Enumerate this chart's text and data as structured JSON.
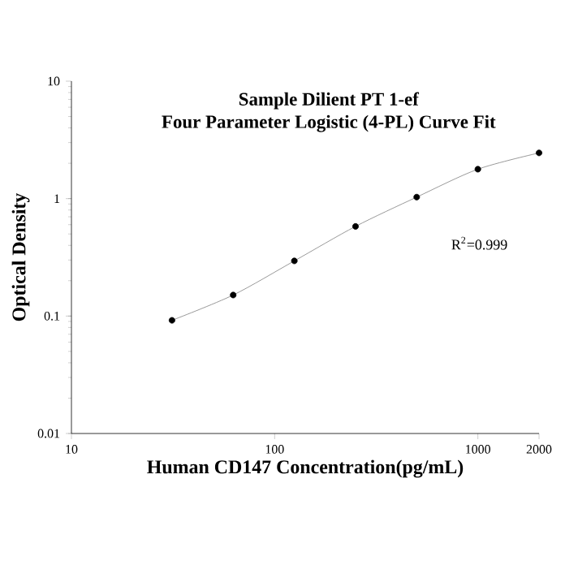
{
  "chart_data": {
    "type": "scatter",
    "title": "Sample Dilient PT 1-ef",
    "subtitle": "Four Parameter Logistic (4-PL) Curve Fit",
    "xlabel": "Human CD147 Concentration(pg/mL)",
    "ylabel": "Optical Density",
    "log": "xy",
    "xlim": [
      10,
      2000
    ],
    "ylim": [
      0.01,
      10
    ],
    "xticks": [
      10,
      100,
      1000,
      2000
    ],
    "yticks": [
      0.01,
      0.1,
      1,
      10
    ],
    "x": [
      31.25,
      62.5,
      125,
      250,
      500,
      1000,
      2000
    ],
    "series": [
      {
        "color": "#000000",
        "marker": "circle",
        "values": [
          0.092,
          0.151,
          0.295,
          0.58,
          1.03,
          1.78,
          2.45
        ]
      },
      {
        "type": "line",
        "color": "#808080",
        "marker": "none",
        "values": [
          0.092,
          0.151,
          0.295,
          0.58,
          1.03,
          1.78,
          2.45
        ]
      }
    ],
    "annotations": [
      "R$^{2}$=0.999"
    ]
  }
}
